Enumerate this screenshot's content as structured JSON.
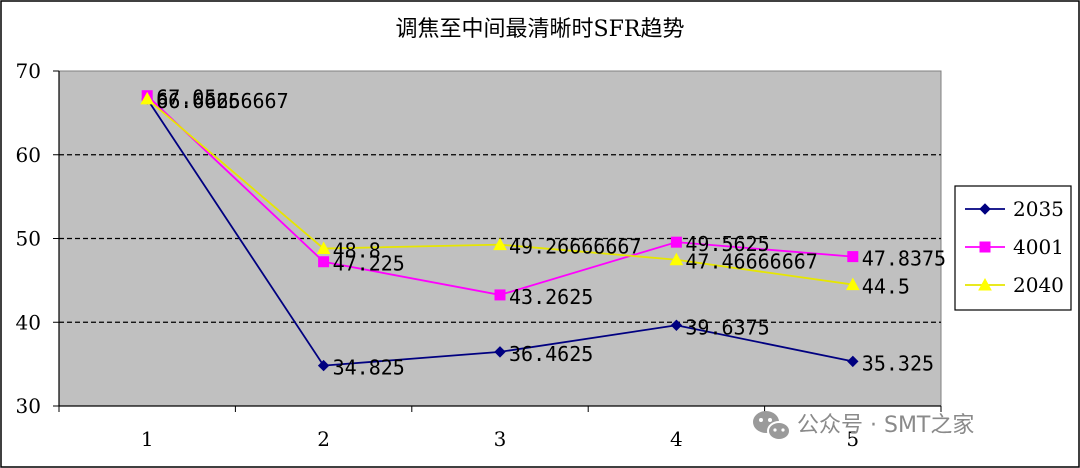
{
  "chart_data": {
    "type": "line",
    "title": "调焦至中间最清晰时SFR趋势",
    "categories": [
      "1",
      "2",
      "3",
      "4",
      "5"
    ],
    "ylim": [
      30,
      70
    ],
    "yticks": [
      "30",
      "40",
      "50",
      "60",
      "70"
    ],
    "grid": "dashed horizontal at 40, 50, 60",
    "plot_background": "#c0c0c0",
    "legend_position": "right",
    "series": [
      {
        "name": "2035",
        "color": "#000080",
        "marker": "diamond",
        "values": [
          66.6625,
          34.825,
          36.4625,
          39.6375,
          35.325
        ],
        "labels": [
          "66.6625",
          "34.825",
          "36.4625",
          "39.6375",
          "35.325"
        ]
      },
      {
        "name": "4001",
        "color": "#ff00ff",
        "marker": "square",
        "values": [
          67.05,
          47.225,
          43.2625,
          49.5625,
          47.8375
        ],
        "labels": [
          "67.05",
          "47.225",
          "43.2625",
          "49.5625",
          "47.8375"
        ]
      },
      {
        "name": "2040",
        "color": "#ffff00",
        "marker": "triangle",
        "values": [
          66.66666667,
          48.8,
          49.26666667,
          47.46666667,
          44.5
        ],
        "labels": [
          "66.66666667",
          "48.8",
          "49.26666667",
          "47.46666667",
          "44.5"
        ]
      }
    ]
  },
  "watermark": {
    "text": "公众号 · SMT之家"
  }
}
